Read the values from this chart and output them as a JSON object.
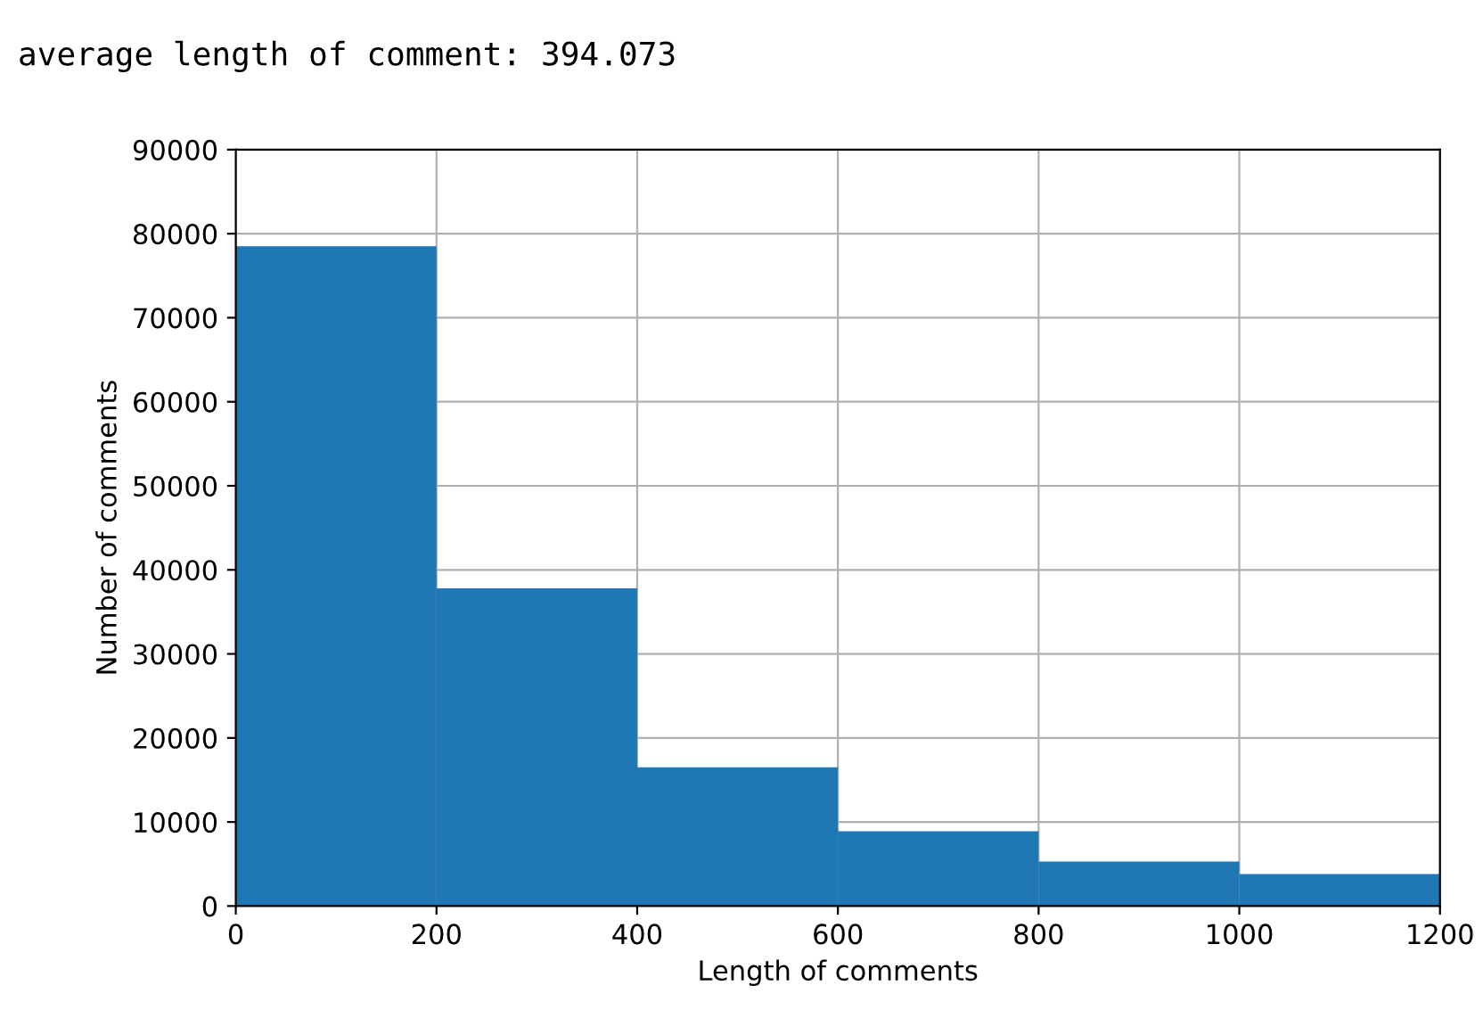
{
  "chart_data": {
    "type": "histogram",
    "title": "average length of comment: 394.073",
    "xlabel": "Length of comments",
    "ylabel": "Number of comments",
    "bins": [
      0,
      200,
      400,
      600,
      800,
      1000,
      1200
    ],
    "values": [
      78500,
      37800,
      16500,
      8900,
      5300,
      3800
    ],
    "color": "#1f77b4",
    "xlim": [
      0,
      1200
    ],
    "xticks": [
      0,
      200,
      400,
      600,
      800,
      1000,
      1200
    ],
    "ylim": [
      0,
      90000
    ],
    "yticks": [
      0,
      10000,
      20000,
      30000,
      40000,
      50000,
      60000,
      70000,
      80000,
      90000
    ],
    "grid": true
  }
}
